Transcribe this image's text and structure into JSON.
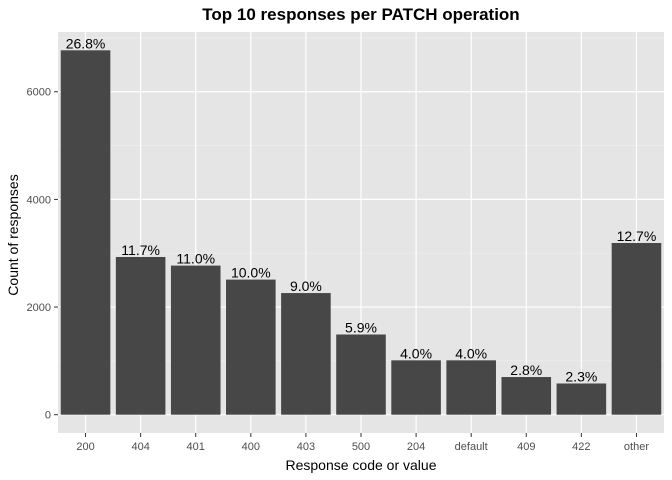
{
  "chart_data": {
    "type": "bar",
    "title": "Top 10 responses per PATCH operation",
    "xlabel": "Response code or value",
    "ylabel": "Count of responses",
    "categories": [
      "200",
      "404",
      "401",
      "400",
      "403",
      "500",
      "204",
      "default",
      "409",
      "422",
      "other"
    ],
    "values": [
      6770,
      2930,
      2770,
      2510,
      2260,
      1490,
      1010,
      1010,
      700,
      580,
      3190
    ],
    "labels": [
      "26.8%",
      "11.7%",
      "11.0%",
      "10.0%",
      "9.0%",
      "5.9%",
      "4.0%",
      "4.0%",
      "2.8%",
      "2.3%",
      "12.7%"
    ],
    "yticks": [
      0,
      2000,
      4000,
      6000
    ],
    "ylim": [
      -340,
      7110
    ],
    "grid": true,
    "legend": "none",
    "colors": {
      "bar": "#474747",
      "panel": "#e5e5e5",
      "grid_major": "#ffffff",
      "grid_minor": "#f0f0f0"
    }
  }
}
